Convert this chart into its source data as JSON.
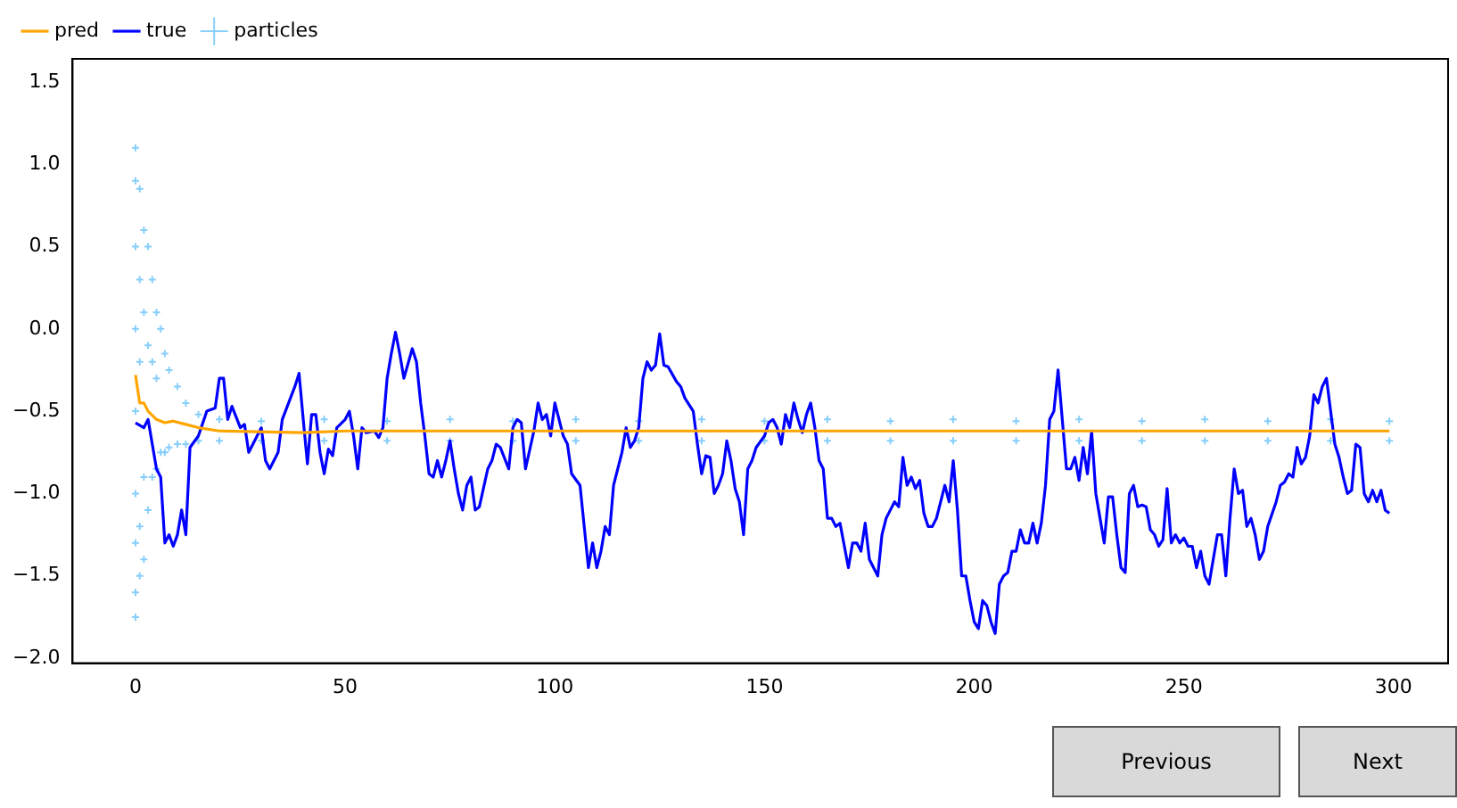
{
  "chart_data": {
    "type": "line",
    "xlim": [
      -15,
      313
    ],
    "xticks": [
      0,
      50,
      100,
      150,
      200,
      250,
      300
    ],
    "ylim": [
      -2.03,
      1.64
    ],
    "yticks": [
      {
        "value": -2,
        "label": "−2.0"
      },
      {
        "value": -1.5,
        "label": "−1.5"
      },
      {
        "value": -1,
        "label": "−1.0"
      },
      {
        "value": -0.5,
        "label": "−0.5"
      },
      {
        "value": 0,
        "label": "0.0"
      },
      {
        "value": 0.5,
        "label": "0.5"
      },
      {
        "value": 1,
        "label": "1.0"
      },
      {
        "value": 1.5,
        "label": "1.5"
      }
    ],
    "grid": false,
    "legend": "top left",
    "line_style": "solid",
    "annotations": [
      "Previous",
      "Next"
    ],
    "series": [
      {
        "name": "pred",
        "color": "#ffa500",
        "x": [
          0,
          1,
          2,
          3,
          5,
          7,
          9,
          12,
          15,
          20,
          40,
          50,
          100,
          150,
          200,
          250,
          299
        ],
        "values": [
          -0.28,
          -0.45,
          -0.45,
          -0.5,
          -0.55,
          -0.57,
          -0.56,
          -0.58,
          -0.6,
          -0.62,
          -0.63,
          -0.62,
          -0.62,
          -0.62,
          -0.62,
          -0.62,
          -0.62
        ]
      },
      {
        "name": "true",
        "color": "#0000ff",
        "x": [
          0,
          2,
          3,
          5,
          6,
          7,
          8,
          9,
          10,
          11,
          12,
          13,
          15,
          17,
          19,
          20,
          21,
          22,
          23,
          25,
          26,
          27,
          28,
          30,
          31,
          32,
          34,
          35,
          38,
          39,
          40,
          41,
          42,
          43,
          44,
          45,
          46,
          47,
          48,
          50,
          51,
          52,
          53,
          54,
          55,
          57,
          58,
          59,
          60,
          61,
          62,
          63,
          64,
          66,
          67,
          68,
          69,
          70,
          71,
          72,
          73,
          74,
          75,
          76,
          77,
          78,
          79,
          80,
          81,
          82,
          84,
          85,
          86,
          87,
          89,
          90,
          91,
          92,
          93,
          95,
          96,
          97,
          98,
          99,
          100,
          101,
          102,
          103,
          104,
          106,
          107,
          108,
          109,
          110,
          111,
          112,
          113,
          114,
          116,
          117,
          118,
          119,
          120,
          121,
          122,
          123,
          124,
          125,
          126,
          127,
          129,
          130,
          131,
          133,
          134,
          135,
          136,
          137,
          138,
          139,
          140,
          141,
          142,
          143,
          144,
          145,
          146,
          147,
          148,
          150,
          151,
          152,
          153,
          154,
          155,
          156,
          157,
          158,
          159,
          160,
          161,
          162,
          163,
          164,
          165,
          166,
          167,
          168,
          170,
          171,
          172,
          173,
          174,
          175,
          176,
          177,
          178,
          179,
          180,
          181,
          182,
          183,
          184,
          185,
          186,
          187,
          188,
          189,
          190,
          191,
          192,
          193,
          194,
          195,
          196,
          197,
          198,
          199,
          200,
          201,
          202,
          203,
          204,
          205,
          206,
          207,
          208,
          209,
          210,
          211,
          212,
          213,
          214,
          215,
          216,
          217,
          218,
          219,
          220,
          221,
          222,
          223,
          224,
          225,
          226,
          227,
          228,
          229,
          230,
          231,
          232,
          233,
          234,
          235,
          236,
          237,
          238,
          239,
          240,
          241,
          242,
          243,
          244,
          245,
          246,
          247,
          248,
          249,
          250,
          251,
          252,
          253,
          254,
          255,
          256,
          257,
          258,
          259,
          260,
          261,
          262,
          263,
          264,
          265,
          266,
          267,
          268,
          269,
          270,
          272,
          273,
          274,
          275,
          276,
          277,
          278,
          279,
          280,
          281,
          282,
          283,
          284,
          285,
          286,
          287,
          288,
          289,
          290,
          291,
          292,
          293,
          294,
          295,
          296,
          297,
          298,
          299
        ],
        "values": [
          -0.57,
          -0.6,
          -0.55,
          -0.85,
          -0.9,
          -1.3,
          -1.25,
          -1.32,
          -1.25,
          -1.1,
          -1.25,
          -0.72,
          -0.65,
          -0.5,
          -0.48,
          -0.3,
          -0.3,
          -0.55,
          -0.47,
          -0.6,
          -0.58,
          -0.75,
          -0.7,
          -0.6,
          -0.8,
          -0.85,
          -0.75,
          -0.55,
          -0.35,
          -0.27,
          -0.55,
          -0.82,
          -0.52,
          -0.52,
          -0.75,
          -0.88,
          -0.73,
          -0.77,
          -0.6,
          -0.55,
          -0.5,
          -0.65,
          -0.85,
          -0.6,
          -0.63,
          -0.62,
          -0.66,
          -0.6,
          -0.3,
          -0.15,
          -0.02,
          -0.15,
          -0.3,
          -0.12,
          -0.2,
          -0.45,
          -0.65,
          -0.88,
          -0.9,
          -0.8,
          -0.9,
          -0.8,
          -0.68,
          -0.85,
          -1,
          -1.1,
          -0.95,
          -0.9,
          -1.1,
          -1.08,
          -0.85,
          -0.8,
          -0.7,
          -0.72,
          -0.85,
          -0.6,
          -0.55,
          -0.57,
          -0.85,
          -0.62,
          -0.45,
          -0.55,
          -0.52,
          -0.65,
          -0.45,
          -0.55,
          -0.65,
          -0.7,
          -0.88,
          -0.95,
          -1.2,
          -1.45,
          -1.3,
          -1.45,
          -1.35,
          -1.2,
          -1.25,
          -0.95,
          -0.75,
          -0.6,
          -0.72,
          -0.68,
          -0.6,
          -0.3,
          -0.2,
          -0.25,
          -0.22,
          -0.03,
          -0.22,
          -0.23,
          -0.32,
          -0.35,
          -0.42,
          -0.5,
          -0.7,
          -0.88,
          -0.77,
          -0.78,
          -1,
          -0.95,
          -0.88,
          -0.68,
          -0.8,
          -0.97,
          -1.05,
          -1.25,
          -0.85,
          -0.8,
          -0.72,
          -0.65,
          -0.57,
          -0.55,
          -0.6,
          -0.7,
          -0.52,
          -0.6,
          -0.45,
          -0.55,
          -0.63,
          -0.52,
          -0.45,
          -0.6,
          -0.8,
          -0.85,
          -1.15,
          -1.15,
          -1.2,
          -1.18,
          -1.45,
          -1.3,
          -1.3,
          -1.35,
          -1.18,
          -1.4,
          -1.45,
          -1.5,
          -1.25,
          -1.15,
          -1.1,
          -1.05,
          -1.08,
          -0.78,
          -0.95,
          -0.9,
          -0.97,
          -0.92,
          -1.12,
          -1.2,
          -1.2,
          -1.15,
          -1.05,
          -0.95,
          -1.05,
          -0.8,
          -1.1,
          -1.5,
          -1.5,
          -1.65,
          -1.78,
          -1.82,
          -1.65,
          -1.68,
          -1.78,
          -1.85,
          -1.55,
          -1.5,
          -1.48,
          -1.35,
          -1.35,
          -1.22,
          -1.3,
          -1.3,
          -1.18,
          -1.3,
          -1.18,
          -0.95,
          -0.55,
          -0.5,
          -0.25,
          -0.55,
          -0.85,
          -0.85,
          -0.78,
          -0.92,
          -0.72,
          -0.88,
          -0.62,
          -1,
          -1.15,
          -1.3,
          -1.02,
          -1.02,
          -1.25,
          -1.45,
          -1.48,
          -1,
          -0.95,
          -1.08,
          -1.07,
          -1.08,
          -1.22,
          -1.25,
          -1.32,
          -1.28,
          -0.97,
          -1.3,
          -1.25,
          -1.3,
          -1.27,
          -1.32,
          -1.32,
          -1.45,
          -1.35,
          -1.5,
          -1.55,
          -1.4,
          -1.25,
          -1.25,
          -1.5,
          -1.15,
          -0.85,
          -1,
          -0.98,
          -1.2,
          -1.15,
          -1.25,
          -1.4,
          -1.35,
          -1.2,
          -1.05,
          -0.95,
          -0.93,
          -0.88,
          -0.9,
          -0.72,
          -0.82,
          -0.78,
          -0.65,
          -0.4,
          -0.45,
          -0.35,
          -0.3,
          -0.5,
          -0.7,
          -0.78,
          -0.9,
          -1,
          -0.98,
          -0.7,
          -0.72,
          -1,
          -1.05,
          -0.98,
          -1.05,
          -0.98,
          -1.1,
          -1.12
        ]
      },
      {
        "name": "particles",
        "type": "scatter",
        "color": "#87cefa",
        "marker": "cross",
        "x": [
          0,
          0,
          0,
          0,
          0,
          0,
          0,
          0,
          0,
          1,
          1,
          1,
          1,
          1,
          2,
          2,
          2,
          2,
          3,
          3,
          3,
          4,
          4,
          4,
          5,
          5,
          5,
          6,
          6,
          7,
          7,
          8,
          8,
          10,
          10,
          12,
          12,
          15,
          15,
          20,
          20,
          30,
          30,
          45,
          45,
          60,
          60,
          75,
          75,
          90,
          90,
          105,
          105,
          120,
          120,
          135,
          135,
          150,
          150,
          165,
          165,
          180,
          180,
          195,
          195,
          210,
          210,
          225,
          225,
          240,
          240,
          255,
          255,
          270,
          270,
          285,
          285,
          299,
          299
        ],
        "values": [
          1.1,
          0.9,
          0.5,
          0,
          -0.5,
          -1,
          -1.3,
          -1.6,
          -1.75,
          0.85,
          0.3,
          -0.2,
          -1.2,
          -1.5,
          0.6,
          0.1,
          -0.9,
          -1.4,
          0.5,
          -0.1,
          -1.1,
          0.3,
          -0.2,
          -0.9,
          0.1,
          -0.3,
          -0.85,
          0,
          -0.75,
          -0.15,
          -0.75,
          -0.25,
          -0.72,
          -0.35,
          -0.7,
          -0.45,
          -0.7,
          -0.52,
          -0.68,
          -0.55,
          -0.68,
          -0.56,
          -0.68,
          -0.55,
          -0.68,
          -0.56,
          -0.68,
          -0.55,
          -0.68,
          -0.56,
          -0.68,
          -0.55,
          -0.68,
          -0.56,
          -0.68,
          -0.55,
          -0.68,
          -0.56,
          -0.68,
          -0.55,
          -0.68,
          -0.56,
          -0.68,
          -0.55,
          -0.68,
          -0.56,
          -0.68,
          -0.55,
          -0.68,
          -0.56,
          -0.68,
          -0.55,
          -0.68,
          -0.56,
          -0.68,
          -0.55,
          -0.68,
          -0.56,
          -0.68
        ]
      }
    ]
  }
}
